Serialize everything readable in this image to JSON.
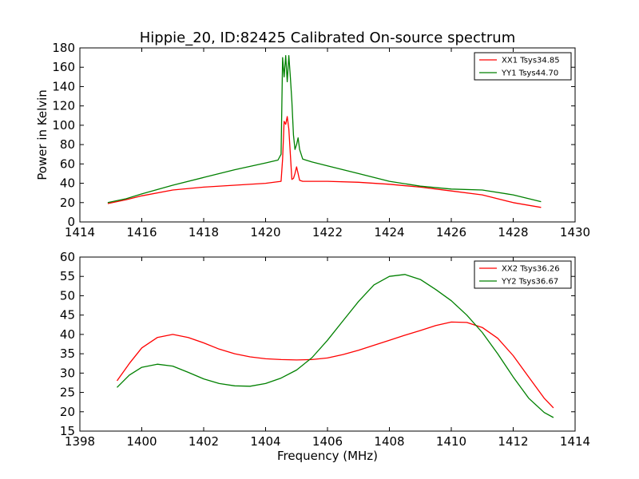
{
  "title": "Hippie_20, ID:82425 Calibrated On-source spectrum",
  "chart_data": [
    {
      "type": "line",
      "ylabel": "Power in Kelvin",
      "xlabel": "",
      "xlim": [
        1414,
        1430
      ],
      "ylim": [
        0,
        180
      ],
      "xticks": [
        1414,
        1416,
        1418,
        1420,
        1422,
        1424,
        1426,
        1428,
        1430
      ],
      "yticks": [
        0,
        20,
        40,
        60,
        80,
        100,
        120,
        140,
        160,
        180
      ],
      "legend_position": "top-right",
      "series": [
        {
          "name": "XX1 Tsys34.85",
          "color": "#ff0000",
          "x": [
            1414.9,
            1415.5,
            1416,
            1417,
            1418,
            1419,
            1420,
            1420.5,
            1420.55,
            1420.6,
            1420.65,
            1420.7,
            1420.75,
            1420.8,
            1420.85,
            1420.9,
            1420.95,
            1421.0,
            1421.05,
            1421.1,
            1421.2,
            1421.5,
            1422,
            1423,
            1424,
            1425,
            1426,
            1427,
            1428,
            1428.9
          ],
          "y": [
            19,
            23,
            27,
            33,
            36,
            38,
            40,
            42,
            65,
            104,
            101,
            109,
            96,
            70,
            44,
            45,
            50,
            57,
            50,
            43,
            42,
            42,
            42,
            41,
            39,
            36,
            32,
            28,
            20,
            15
          ]
        },
        {
          "name": "YY1 Tsys44.70",
          "color": "#008000",
          "x": [
            1414.9,
            1415.5,
            1416,
            1417,
            1418,
            1419,
            1420,
            1420.4,
            1420.5,
            1420.55,
            1420.6,
            1420.65,
            1420.7,
            1420.75,
            1420.8,
            1420.85,
            1420.9,
            1420.95,
            1421.0,
            1421.05,
            1421.1,
            1421.2,
            1421.5,
            1422,
            1423,
            1424,
            1425,
            1426,
            1427,
            1428,
            1428.9
          ],
          "y": [
            20,
            24,
            29,
            38,
            46,
            54,
            61,
            64,
            70,
            170,
            150,
            172,
            145,
            172,
            150,
            125,
            90,
            75,
            80,
            87,
            75,
            65,
            62,
            58,
            50,
            42,
            37,
            34,
            33,
            28,
            21
          ]
        }
      ]
    },
    {
      "type": "line",
      "ylabel": "",
      "xlabel": "Frequency (MHz)",
      "xlim": [
        1398,
        1414
      ],
      "ylim": [
        15,
        60
      ],
      "xticks": [
        1398,
        1400,
        1402,
        1404,
        1406,
        1408,
        1410,
        1412,
        1414
      ],
      "yticks": [
        15,
        20,
        25,
        30,
        35,
        40,
        45,
        50,
        55,
        60
      ],
      "legend_position": "top-right",
      "series": [
        {
          "name": "XX2 Tsys36.26",
          "color": "#ff0000",
          "x": [
            1399.2,
            1399.6,
            1400.0,
            1400.5,
            1401.0,
            1401.5,
            1402.0,
            1402.5,
            1403.0,
            1403.5,
            1404.0,
            1404.5,
            1405.0,
            1405.5,
            1406.0,
            1406.5,
            1407.0,
            1407.5,
            1408.0,
            1408.5,
            1409.0,
            1409.5,
            1410.0,
            1410.5,
            1411.0,
            1411.5,
            1412.0,
            1412.5,
            1413.0,
            1413.3
          ],
          "y": [
            28,
            32.5,
            36.5,
            39.2,
            40,
            39.2,
            37.8,
            36.2,
            35,
            34.2,
            33.7,
            33.5,
            33.4,
            33.5,
            33.9,
            34.8,
            35.9,
            37.2,
            38.5,
            39.8,
            41,
            42.3,
            43.2,
            43.1,
            41.8,
            39,
            34.5,
            29,
            23.5,
            21
          ]
        },
        {
          "name": "YY2 Tsys36.67",
          "color": "#008000",
          "x": [
            1399.2,
            1399.6,
            1400.0,
            1400.5,
            1401.0,
            1401.5,
            1402.0,
            1402.5,
            1403.0,
            1403.5,
            1404.0,
            1404.5,
            1405.0,
            1405.5,
            1406.0,
            1406.5,
            1407.0,
            1407.5,
            1408.0,
            1408.5,
            1409.0,
            1409.5,
            1410.0,
            1410.5,
            1411.0,
            1411.5,
            1412.0,
            1412.5,
            1413.0,
            1413.3
          ],
          "y": [
            26.3,
            29.5,
            31.5,
            32.3,
            31.8,
            30.2,
            28.5,
            27.3,
            26.7,
            26.6,
            27.3,
            28.7,
            30.8,
            34,
            38.5,
            43.5,
            48.5,
            52.8,
            55,
            55.5,
            54.2,
            51.6,
            48.7,
            45,
            40.5,
            35,
            29,
            23.5,
            19.8,
            18.5
          ]
        }
      ]
    }
  ]
}
